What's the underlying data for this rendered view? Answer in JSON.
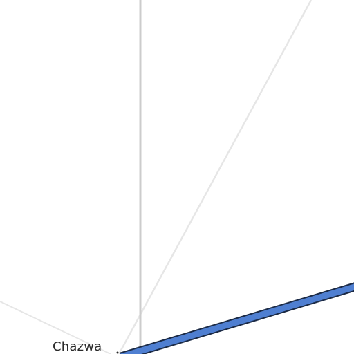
{
  "map": {
    "places": [
      {
        "name": "Chazwa"
      }
    ],
    "colors": {
      "background": "#ffffff",
      "minor_road": "#e6e6e6",
      "secondary_road": "#cccccc",
      "highway_fill": "#4f7fd1",
      "highway_casing": "#1b2a45",
      "label": "#2a2a2a"
    }
  }
}
